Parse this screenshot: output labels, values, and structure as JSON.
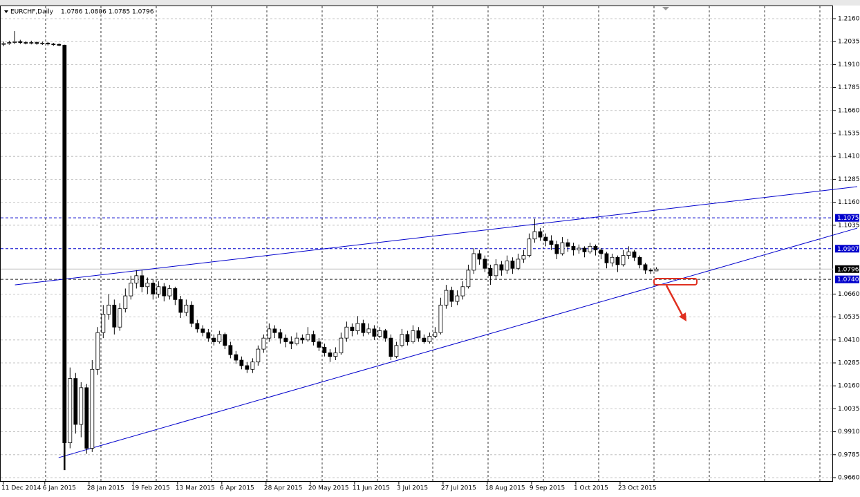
{
  "chart_data": {
    "type": "candlestick",
    "title": "EURCHF,Daily",
    "header_prices": "1.0786 1.0806 1.0785 1.0796",
    "up_color": "#ffffff",
    "down_color": "#000000",
    "ylim": [
      0.96374,
      1.22165
    ],
    "yticks": [
      {
        "value": 1.216,
        "label": "1.2160"
      },
      {
        "value": 1.2035,
        "label": "1.2035"
      },
      {
        "value": 1.191,
        "label": "1.1910"
      },
      {
        "value": 1.1785,
        "label": "1.1785"
      },
      {
        "value": 1.166,
        "label": "1.1660"
      },
      {
        "value": 1.1535,
        "label": "1.1535"
      },
      {
        "value": 1.141,
        "label": "1.1410"
      },
      {
        "value": 1.1285,
        "label": "1.1285"
      },
      {
        "value": 1.116,
        "label": "1.1160"
      },
      {
        "value": 1.1035,
        "label": "1.1035"
      },
      {
        "value": 1.066,
        "label": "1.0660"
      },
      {
        "value": 1.0535,
        "label": "1.0535"
      },
      {
        "value": 1.041,
        "label": "1.0410"
      },
      {
        "value": 1.0285,
        "label": "1.0285"
      },
      {
        "value": 1.016,
        "label": "1.0160"
      },
      {
        "value": 1.0035,
        "label": "1.0035"
      },
      {
        "value": 0.991,
        "label": "0.9910"
      },
      {
        "value": 0.9785,
        "label": "0.9785"
      },
      {
        "value": 0.966,
        "label": "0.9660"
      }
    ],
    "xlim": [
      -0.6,
      150
    ],
    "xticks": [
      {
        "value": 0,
        "label": "11 Dec 2014"
      },
      {
        "value": 7.5,
        "label": "6 Jan 2015"
      },
      {
        "value": 15.5,
        "label": "28 Jan 2015"
      },
      {
        "value": 23.5,
        "label": "19 Feb 2015"
      },
      {
        "value": 31.5,
        "label": "13 Mar 2015"
      },
      {
        "value": 39.5,
        "label": "6 Apr 2015"
      },
      {
        "value": 47.5,
        "label": "28 Apr 2015"
      },
      {
        "value": 55.5,
        "label": "20 May 2015"
      },
      {
        "value": 63.5,
        "label": "11 Jun 2015"
      },
      {
        "value": 71.5,
        "label": "3 Jul 2015"
      },
      {
        "value": 79.5,
        "label": "27 Jul 2015"
      },
      {
        "value": 87.5,
        "label": "18 Aug 2015"
      },
      {
        "value": 95.5,
        "label": "9 Sep 2015"
      },
      {
        "value": 103.5,
        "label": "1 Oct 2015"
      },
      {
        "value": 111.5,
        "label": "23 Oct 2015"
      }
    ],
    "grid": true,
    "levels": [
      {
        "value": 1.1075,
        "label": "1.1075",
        "color": "#0000cc"
      },
      {
        "value": 1.0907,
        "label": "1.0907",
        "color": "#0000cc"
      },
      {
        "value": 1.074,
        "label": "1.0740",
        "color": "#0000cc"
      }
    ],
    "current_price": {
      "value": 1.0796,
      "label": "1.0796",
      "color": "#000000"
    },
    "trendlines": [
      {
        "x": [
          2.1,
          154.4
        ],
        "y": [
          1.071,
          1.1245
        ],
        "color": "#0000cc"
      },
      {
        "x": [
          10,
          154.4
        ],
        "y": [
          0.9769,
          1.1019
        ],
        "color": "#0000cc"
      }
    ],
    "ohlc": [
      [
        1.202,
        1.2035,
        1.201,
        1.2025
      ],
      [
        1.2025,
        1.204,
        1.2018,
        1.203
      ],
      [
        1.203,
        1.2092,
        1.2022,
        1.2035
      ],
      [
        1.2035,
        1.2045,
        1.2022,
        1.203
      ],
      [
        1.203,
        1.2038,
        1.202,
        1.2028
      ],
      [
        1.2028,
        1.204,
        1.202,
        1.203
      ],
      [
        1.203,
        1.2036,
        1.2018,
        1.2025
      ],
      [
        1.2025,
        1.2035,
        1.2017,
        1.2027
      ],
      [
        1.2027,
        1.2032,
        1.2014,
        1.2022
      ],
      [
        1.2022,
        1.2028,
        1.2012,
        1.202
      ],
      [
        1.202,
        1.2025,
        1.201,
        1.2015
      ],
      [
        1.2015,
        1.2018,
        0.9701,
        0.985
      ],
      [
        0.985,
        1.026,
        0.982,
        1.02
      ],
      [
        1.02,
        1.023,
        0.99,
        0.995
      ],
      [
        0.995,
        1.018,
        0.988,
        1.015
      ],
      [
        1.015,
        1.017,
        0.979,
        0.982
      ],
      [
        0.982,
        1.03,
        0.98,
        1.025
      ],
      [
        1.025,
        1.048,
        1.022,
        1.045
      ],
      [
        1.045,
        1.06,
        1.042,
        1.055
      ],
      [
        1.055,
        1.066,
        1.052,
        1.06
      ],
      [
        1.06,
        1.063,
        1.044,
        1.048
      ],
      [
        1.048,
        1.061,
        1.046,
        1.058
      ],
      [
        1.058,
        1.069,
        1.056,
        1.065
      ],
      [
        1.065,
        1.076,
        1.063,
        1.072
      ],
      [
        1.072,
        1.079,
        1.069,
        1.076
      ],
      [
        1.076,
        1.079,
        1.067,
        1.07
      ],
      [
        1.07,
        1.075,
        1.066,
        1.072
      ],
      [
        1.072,
        1.074,
        1.063,
        1.066
      ],
      [
        1.066,
        1.073,
        1.064,
        1.07
      ],
      [
        1.07,
        1.072,
        1.062,
        1.065
      ],
      [
        1.065,
        1.071,
        1.063,
        1.069
      ],
      [
        1.069,
        1.07,
        1.06,
        1.063
      ],
      [
        1.063,
        1.065,
        1.053,
        1.056
      ],
      [
        1.056,
        1.063,
        1.054,
        1.06
      ],
      [
        1.06,
        1.062,
        1.048,
        1.05
      ],
      [
        1.05,
        1.052,
        1.045,
        1.047
      ],
      [
        1.047,
        1.049,
        1.043,
        1.045
      ],
      [
        1.045,
        1.047,
        1.04,
        1.042
      ],
      [
        1.042,
        1.044,
        1.038,
        1.04
      ],
      [
        1.04,
        1.046,
        1.039,
        1.044
      ],
      [
        1.044,
        1.045,
        1.036,
        1.038
      ],
      [
        1.038,
        1.04,
        1.031,
        1.033
      ],
      [
        1.033,
        1.035,
        1.028,
        1.03
      ],
      [
        1.03,
        1.032,
        1.025,
        1.027
      ],
      [
        1.027,
        1.029,
        1.023,
        1.025
      ],
      [
        1.025,
        1.031,
        1.023,
        1.029
      ],
      [
        1.029,
        1.038,
        1.027,
        1.036
      ],
      [
        1.036,
        1.044,
        1.034,
        1.042
      ],
      [
        1.042,
        1.05,
        1.04,
        1.047
      ],
      [
        1.047,
        1.049,
        1.042,
        1.045
      ],
      [
        1.045,
        1.047,
        1.039,
        1.042
      ],
      [
        1.042,
        1.044,
        1.037,
        1.04
      ],
      [
        1.04,
        1.043,
        1.036,
        1.039
      ],
      [
        1.039,
        1.045,
        1.038,
        1.042
      ],
      [
        1.042,
        1.044,
        1.039,
        1.041
      ],
      [
        1.041,
        1.048,
        1.04,
        1.044
      ],
      [
        1.044,
        1.046,
        1.038,
        1.04
      ],
      [
        1.04,
        1.042,
        1.035,
        1.037
      ],
      [
        1.037,
        1.039,
        1.032,
        1.034
      ],
      [
        1.034,
        1.036,
        1.029,
        1.032
      ],
      [
        1.032,
        1.037,
        1.03,
        1.034
      ],
      [
        1.034,
        1.045,
        1.033,
        1.042
      ],
      [
        1.042,
        1.051,
        1.04,
        1.048
      ],
      [
        1.048,
        1.05,
        1.043,
        1.046
      ],
      [
        1.046,
        1.054,
        1.044,
        1.05
      ],
      [
        1.05,
        1.052,
        1.043,
        1.045
      ],
      [
        1.045,
        1.05,
        1.044,
        1.047
      ],
      [
        1.047,
        1.049,
        1.041,
        1.043
      ],
      [
        1.043,
        1.048,
        1.042,
        1.046
      ],
      [
        1.046,
        1.047,
        1.04,
        1.042
      ],
      [
        1.042,
        1.044,
        1.03,
        1.032
      ],
      [
        1.032,
        1.04,
        1.031,
        1.038
      ],
      [
        1.038,
        1.047,
        1.037,
        1.044
      ],
      [
        1.044,
        1.046,
        1.038,
        1.04
      ],
      [
        1.04,
        1.049,
        1.039,
        1.046
      ],
      [
        1.046,
        1.048,
        1.04,
        1.042
      ],
      [
        1.042,
        1.044,
        1.039,
        1.04
      ],
      [
        1.04,
        1.045,
        1.039,
        1.043
      ],
      [
        1.043,
        1.048,
        1.042,
        1.045
      ],
      [
        1.045,
        1.064,
        1.044,
        1.06
      ],
      [
        1.06,
        1.071,
        1.058,
        1.068
      ],
      [
        1.068,
        1.07,
        1.059,
        1.062
      ],
      [
        1.062,
        1.068,
        1.06,
        1.065
      ],
      [
        1.065,
        1.073,
        1.063,
        1.07
      ],
      [
        1.07,
        1.082,
        1.069,
        1.079
      ],
      [
        1.079,
        1.091,
        1.077,
        1.088
      ],
      [
        1.088,
        1.09,
        1.082,
        1.085
      ],
      [
        1.085,
        1.087,
        1.078,
        1.08
      ],
      [
        1.08,
        1.082,
        1.071,
        1.076
      ],
      [
        1.076,
        1.085,
        1.074,
        1.082
      ],
      [
        1.082,
        1.084,
        1.076,
        1.079
      ],
      [
        1.079,
        1.087,
        1.077,
        1.084
      ],
      [
        1.084,
        1.086,
        1.077,
        1.08
      ],
      [
        1.08,
        1.088,
        1.079,
        1.085
      ],
      [
        1.085,
        1.09,
        1.083,
        1.087
      ],
      [
        1.087,
        1.099,
        1.086,
        1.096
      ],
      [
        1.096,
        1.107,
        1.094,
        1.1
      ],
      [
        1.1,
        1.102,
        1.095,
        1.097
      ],
      [
        1.097,
        1.099,
        1.092,
        1.095
      ],
      [
        1.095,
        1.098,
        1.09,
        1.093
      ],
      [
        1.093,
        1.095,
        1.085,
        1.088
      ],
      [
        1.088,
        1.097,
        1.087,
        1.094
      ],
      [
        1.094,
        1.096,
        1.089,
        1.092
      ],
      [
        1.092,
        1.094,
        1.087,
        1.09
      ],
      [
        1.09,
        1.093,
        1.088,
        1.091
      ],
      [
        1.091,
        1.092,
        1.086,
        1.089
      ],
      [
        1.089,
        1.094,
        1.088,
        1.092
      ],
      [
        1.092,
        1.093,
        1.087,
        1.09
      ],
      [
        1.09,
        1.091,
        1.085,
        1.088
      ],
      [
        1.088,
        1.089,
        1.08,
        1.083
      ],
      [
        1.083,
        1.088,
        1.081,
        1.086
      ],
      [
        1.086,
        1.087,
        1.078,
        1.082
      ],
      [
        1.082,
        1.09,
        1.081,
        1.087
      ],
      [
        1.087,
        1.092,
        1.085,
        1.089
      ],
      [
        1.089,
        1.09,
        1.084,
        1.086
      ],
      [
        1.086,
        1.087,
        1.08,
        1.082
      ],
      [
        1.082,
        1.083,
        1.077,
        1.079
      ],
      [
        1.079,
        1.08,
        1.077,
        1.0786
      ],
      [
        1.0786,
        1.0806,
        1.0785,
        1.0796
      ]
    ]
  }
}
